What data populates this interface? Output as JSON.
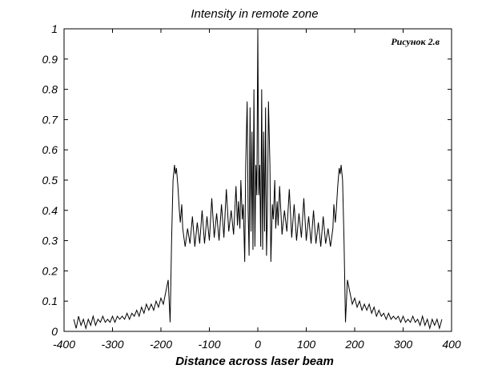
{
  "chart_data": {
    "type": "line",
    "title": "Intensity in remote zone",
    "xlabel": "Distance across laser beam",
    "ylabel": "",
    "annotation": "Рисунок 2.в",
    "xlim": [
      -400,
      400
    ],
    "ylim": [
      0,
      1
    ],
    "xticks": [
      -400,
      -300,
      -200,
      -100,
      0,
      100,
      200,
      300,
      400
    ],
    "yticks": [
      0,
      0.1,
      0.2,
      0.3,
      0.4,
      0.5,
      0.6,
      0.7,
      0.8,
      0.9,
      1
    ],
    "ytick_labels": [
      "0",
      "0.1",
      "0.2",
      "0.3",
      "0.4",
      "0.5",
      "0.6",
      "0.7",
      "0.8",
      "0.9",
      "1"
    ],
    "grid": false,
    "line_color": "#000000",
    "series": [
      {
        "x": [
          -380,
          -375,
          -370,
          -365,
          -360,
          -355,
          -350,
          -345,
          -340,
          -335,
          -330,
          -325,
          -320,
          -315,
          -310,
          -305,
          -300,
          -295,
          -290,
          -285,
          -280,
          -275,
          -270,
          -265,
          -260,
          -255,
          -250,
          -245,
          -240,
          -235,
          -230,
          -225,
          -220,
          -215,
          -210,
          -205,
          -200,
          -195,
          -190,
          -185,
          -181,
          -178,
          -175,
          -172,
          -170,
          -168,
          -165,
          -162,
          -160,
          -157,
          -155,
          -150,
          -145,
          -140,
          -135,
          -130,
          -125,
          -120,
          -115,
          -110,
          -105,
          -100,
          -95,
          -90,
          -85,
          -80,
          -75,
          -70,
          -65,
          -60,
          -55,
          -50,
          -45,
          -42,
          -40,
          -37,
          -35,
          -32,
          -30,
          -27,
          -25,
          -22,
          -20,
          -18,
          -16,
          -14,
          -12,
          -10,
          -8,
          -6,
          -4,
          -2,
          0,
          2,
          4,
          6,
          8,
          10,
          12,
          14,
          16,
          18,
          20,
          22,
          25,
          27,
          30,
          32,
          35,
          37,
          40,
          42,
          45,
          50,
          55,
          60,
          65,
          70,
          75,
          80,
          85,
          90,
          95,
          100,
          105,
          110,
          115,
          120,
          125,
          130,
          135,
          140,
          145,
          150,
          155,
          157,
          160,
          162,
          165,
          168,
          170,
          172,
          175,
          178,
          181,
          185,
          190,
          195,
          200,
          205,
          210,
          215,
          220,
          225,
          230,
          235,
          240,
          245,
          250,
          255,
          260,
          265,
          270,
          275,
          280,
          285,
          290,
          295,
          300,
          305,
          310,
          315,
          320,
          325,
          330,
          335,
          340,
          345,
          350,
          355,
          360,
          365,
          370,
          375,
          380
        ],
        "y": [
          0.04,
          0.01,
          0.05,
          0.02,
          0.04,
          0.01,
          0.04,
          0.02,
          0.05,
          0.02,
          0.04,
          0.03,
          0.05,
          0.03,
          0.04,
          0.03,
          0.05,
          0.03,
          0.05,
          0.04,
          0.05,
          0.04,
          0.06,
          0.04,
          0.06,
          0.05,
          0.07,
          0.05,
          0.08,
          0.06,
          0.09,
          0.07,
          0.09,
          0.07,
          0.1,
          0.08,
          0.11,
          0.09,
          0.13,
          0.17,
          0.03,
          0.3,
          0.5,
          0.55,
          0.52,
          0.54,
          0.48,
          0.4,
          0.36,
          0.42,
          0.34,
          0.28,
          0.34,
          0.29,
          0.38,
          0.28,
          0.36,
          0.29,
          0.4,
          0.29,
          0.38,
          0.3,
          0.44,
          0.31,
          0.39,
          0.3,
          0.42,
          0.31,
          0.47,
          0.33,
          0.4,
          0.32,
          0.48,
          0.35,
          0.43,
          0.34,
          0.5,
          0.37,
          0.42,
          0.23,
          0.55,
          0.76,
          0.4,
          0.25,
          0.74,
          0.33,
          0.66,
          0.27,
          0.8,
          0.28,
          0.55,
          0.45,
          1.0,
          0.45,
          0.55,
          0.28,
          0.8,
          0.27,
          0.66,
          0.33,
          0.74,
          0.25,
          0.4,
          0.76,
          0.55,
          0.23,
          0.42,
          0.37,
          0.5,
          0.34,
          0.43,
          0.35,
          0.48,
          0.32,
          0.4,
          0.33,
          0.47,
          0.31,
          0.42,
          0.3,
          0.39,
          0.31,
          0.44,
          0.3,
          0.38,
          0.29,
          0.4,
          0.29,
          0.36,
          0.28,
          0.38,
          0.29,
          0.34,
          0.28,
          0.34,
          0.42,
          0.36,
          0.4,
          0.48,
          0.54,
          0.52,
          0.55,
          0.5,
          0.3,
          0.03,
          0.17,
          0.13,
          0.09,
          0.11,
          0.08,
          0.1,
          0.07,
          0.09,
          0.07,
          0.09,
          0.06,
          0.08,
          0.05,
          0.07,
          0.05,
          0.06,
          0.04,
          0.06,
          0.04,
          0.05,
          0.04,
          0.05,
          0.03,
          0.05,
          0.03,
          0.04,
          0.03,
          0.05,
          0.03,
          0.04,
          0.02,
          0.05,
          0.02,
          0.04,
          0.01,
          0.04,
          0.02,
          0.04,
          0.01,
          0.04
        ]
      }
    ]
  }
}
